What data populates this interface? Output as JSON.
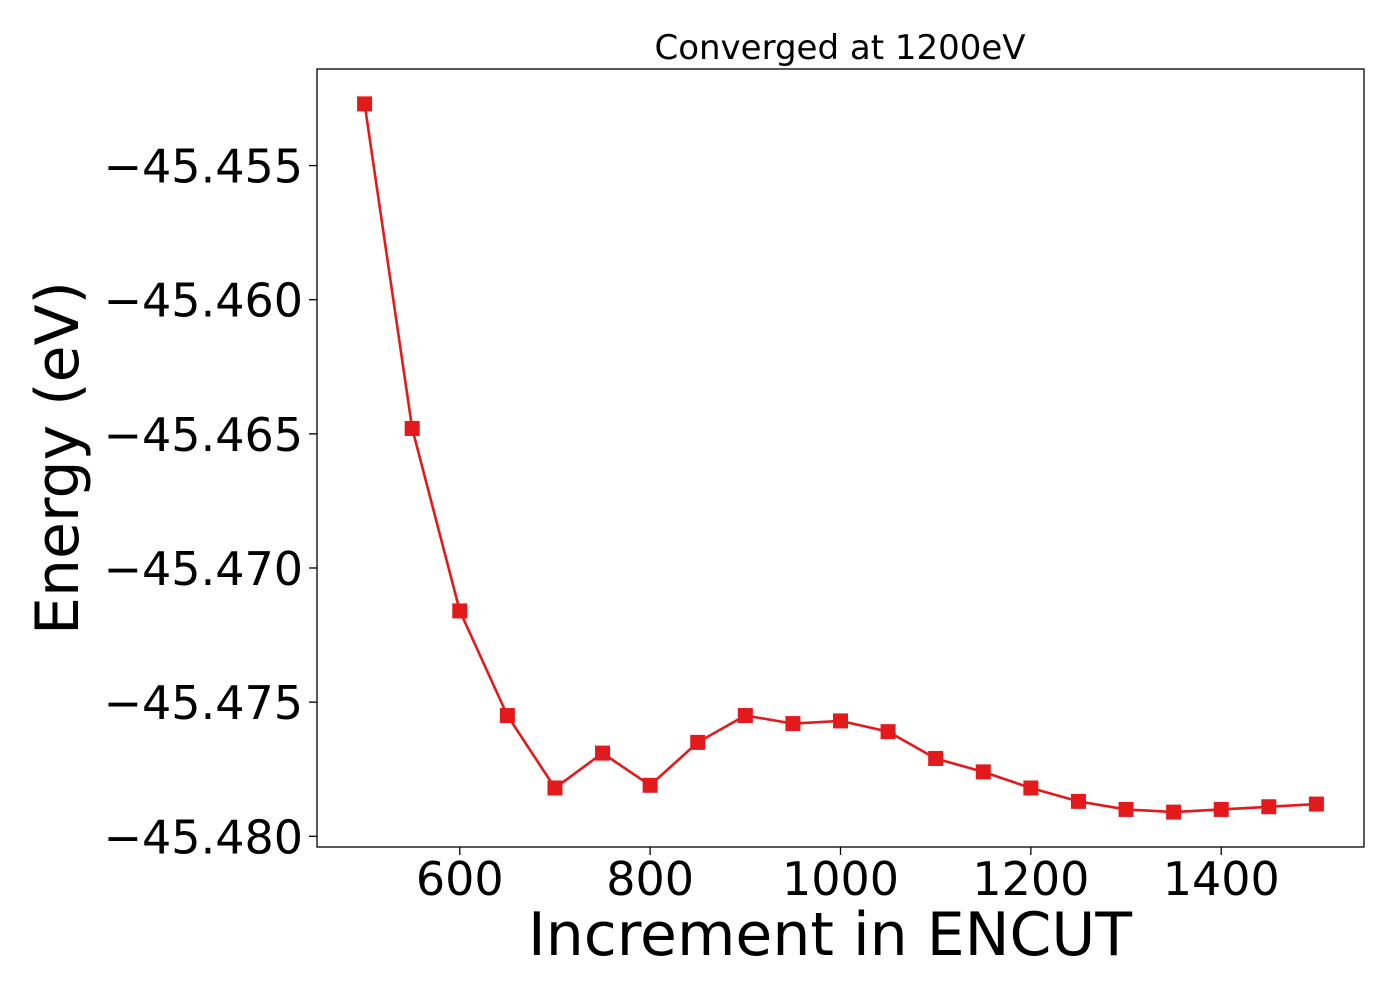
{
  "chart_data": {
    "type": "line",
    "title": "Converged at 1200eV",
    "xlabel": "Increment in ENCUT",
    "ylabel": "Energy (eV)",
    "xlim": [
      450,
      1550
    ],
    "ylim": [
      -45.4804,
      -45.4514
    ],
    "xticks": [
      600,
      800,
      1000,
      1200,
      1400
    ],
    "yticks": [
      -45.455,
      -45.46,
      -45.465,
      -45.47,
      -45.475,
      -45.48
    ],
    "ytick_labels": [
      "−45.455",
      "−45.460",
      "−45.465",
      "−45.470",
      "−45.475",
      "−45.480"
    ],
    "grid": false,
    "color": "#e31a1c",
    "marker": "square",
    "series": [
      {
        "x": [
          500,
          550,
          600,
          650,
          700,
          750,
          800,
          850,
          900,
          950,
          1000,
          1050,
          1100,
          1150,
          1200,
          1250,
          1300,
          1350,
          1400,
          1450,
          1500
        ],
        "y": [
          -45.4527,
          -45.4648,
          -45.4716,
          -45.4755,
          -45.4782,
          -45.4769,
          -45.4781,
          -45.4765,
          -45.4755,
          -45.4758,
          -45.4757,
          -45.4761,
          -45.4771,
          -45.4776,
          -45.4782,
          -45.4787,
          -45.479,
          -45.4791,
          -45.479,
          -45.4789,
          -45.4788
        ]
      }
    ]
  }
}
